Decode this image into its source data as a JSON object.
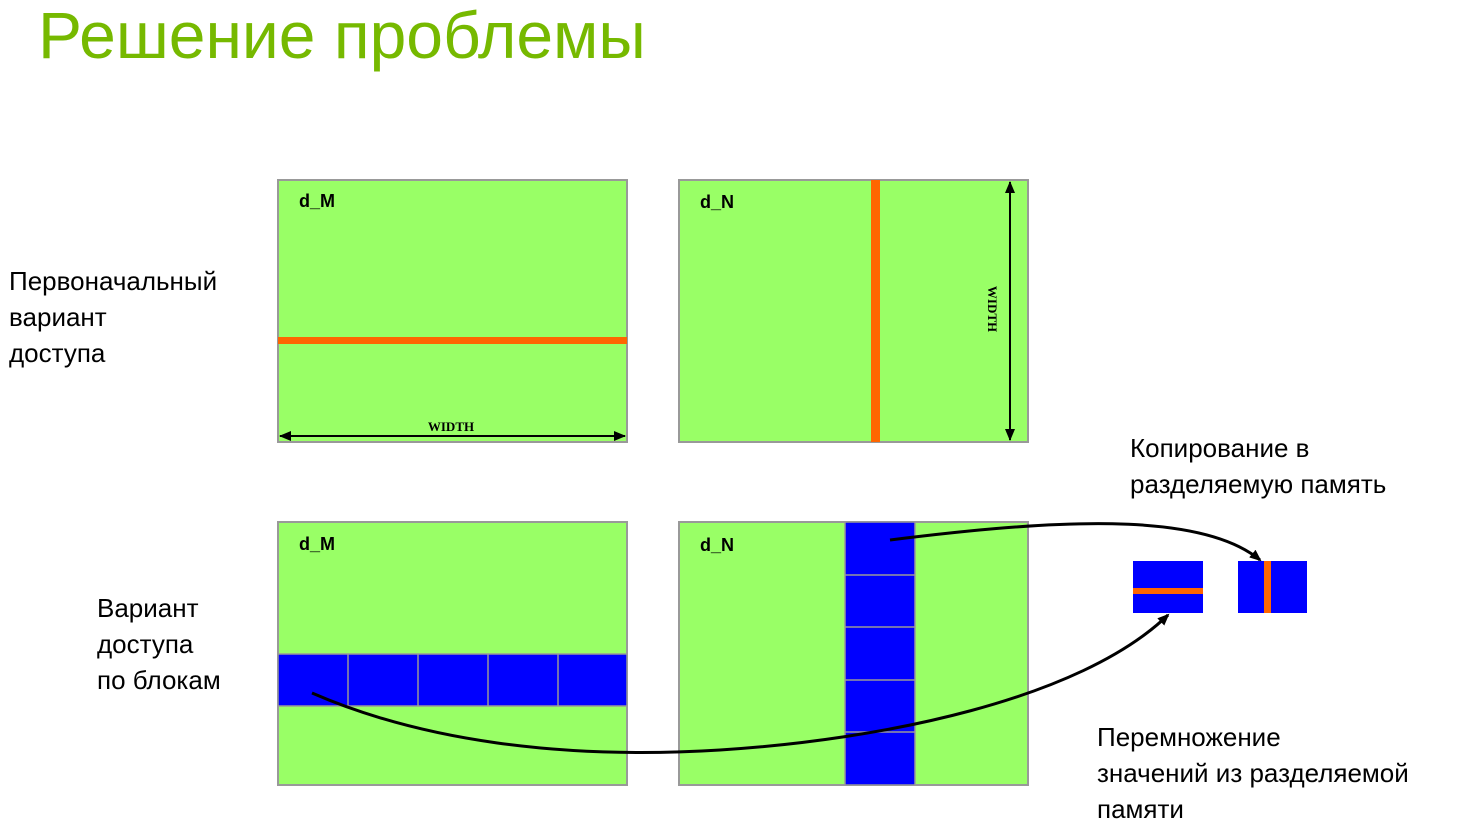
{
  "title": "Решение проблемы",
  "labels": {
    "initial_access": [
      "Первоначальный",
      "вариант",
      "доступа"
    ],
    "block_access": [
      "Вариант",
      "доступа",
      "по блокам"
    ],
    "copy_shared": [
      "Копирование в",
      "разделяемую память"
    ],
    "multiply_shared": [
      "Перемножение",
      "значений из разделяемой",
      "памяти"
    ]
  },
  "matrices": {
    "top_left": "d_M",
    "top_right": "d_N",
    "bottom_left": "d_M",
    "bottom_right": "d_N"
  },
  "dimensions": {
    "horizontal": "WIDTH",
    "vertical": "WIDTH"
  },
  "colors": {
    "title": "#76b900",
    "matrix_fill": "#99ff66",
    "matrix_border": "#999999",
    "row_highlight": "#ff6600",
    "block_fill": "#0000ff",
    "block_divider": "#999999",
    "arrow": "#000000"
  }
}
